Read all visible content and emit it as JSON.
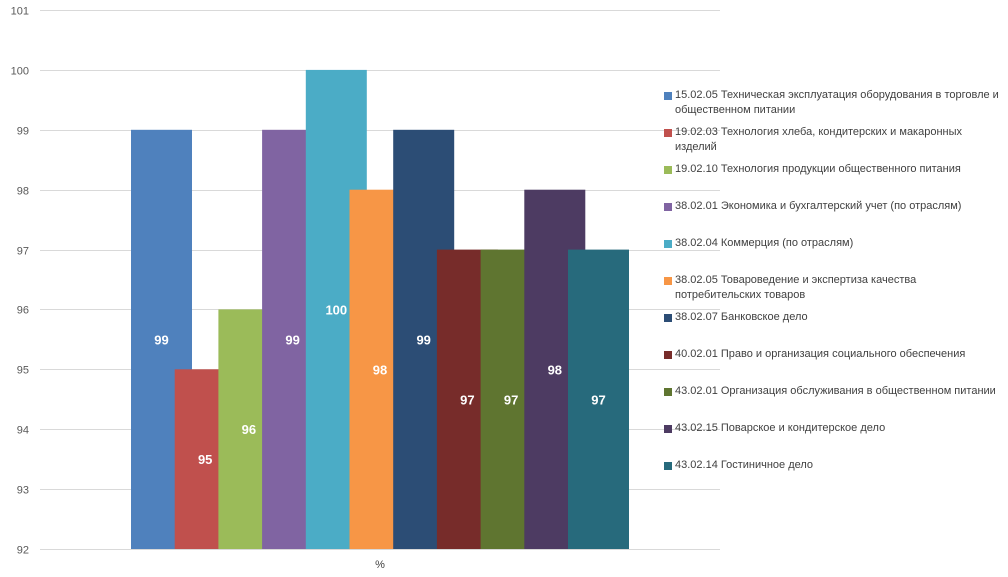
{
  "chart_data": {
    "type": "bar",
    "categories": [
      "%"
    ],
    "xlabel": "%",
    "ylim": [
      92,
      101
    ],
    "yticks": [
      92,
      93,
      94,
      95,
      96,
      97,
      98,
      99,
      100,
      101
    ],
    "grid": true,
    "legend_position": "right",
    "series": [
      {
        "name": "15.02.05 Техническая эксплуатация оборудования в торговле и общественном питании",
        "values": [
          99
        ],
        "color": "#4F81BD"
      },
      {
        "name": "19.02.03 Технология хлеба, кондитерских и макаронных изделий",
        "values": [
          95
        ],
        "color": "#C0504D"
      },
      {
        "name": "19.02.10 Технология продукции общественного питания",
        "values": [
          96
        ],
        "color": "#9BBB59"
      },
      {
        "name": "38.02.01 Экономика и бухгалтерский учет (по отраслям)",
        "values": [
          99
        ],
        "color": "#8064A2"
      },
      {
        "name": "38.02.04 Коммерция (по отраслям)",
        "values": [
          100
        ],
        "color": "#4BACC6"
      },
      {
        "name": "38.02.05 Товароведение и экспертиза качества потребительских товаров",
        "values": [
          98
        ],
        "color": "#F79646"
      },
      {
        "name": "38.02.07 Банковское дело",
        "values": [
          99
        ],
        "color": "#2C4D75"
      },
      {
        "name": "40.02.01 Право и организация социального обеспечения",
        "values": [
          97
        ],
        "color": "#772C2A"
      },
      {
        "name": "43.02.01 Организация обслуживания в общественном питании",
        "values": [
          97
        ],
        "color": "#5F7530"
      },
      {
        "name": "43.02.15 Поварское и кондитерское дело",
        "values": [
          98
        ],
        "color": "#4D3B62"
      },
      {
        "name": "43.02.14 Гостиничное дело",
        "values": [
          97
        ],
        "color": "#276A7C"
      }
    ]
  }
}
